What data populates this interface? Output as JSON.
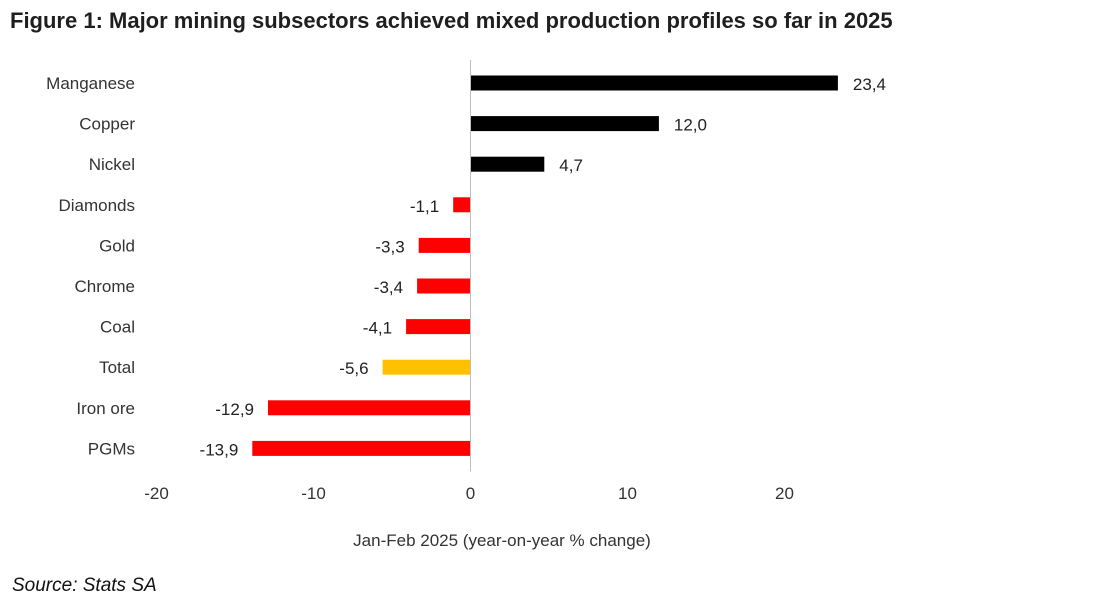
{
  "title": "Figure 1: Major mining subsectors achieved mixed production profiles so far in 2025",
  "source": "Source: Stats SA",
  "chart_data": {
    "type": "bar",
    "orientation": "horizontal",
    "categories": [
      "Manganese",
      "Copper",
      "Nickel",
      "Diamonds",
      "Gold",
      "Chrome",
      "Coal",
      "Total",
      "Iron ore",
      "PGMs"
    ],
    "values": [
      23.4,
      12.0,
      4.7,
      -1.1,
      -3.3,
      -3.4,
      -4.1,
      -5.6,
      -12.9,
      -13.9
    ],
    "data_labels": [
      "23,4",
      "12,0",
      "4,7",
      "-1,1",
      "-3,3",
      "-3,4",
      "-4,1",
      "-5,6",
      "-12,9",
      "-13,9"
    ],
    "bar_colors": [
      "#000000",
      "#000000",
      "#000000",
      "#ff0000",
      "#ff0000",
      "#ff0000",
      "#ff0000",
      "#ffc000",
      "#ff0000",
      "#ff0000"
    ],
    "xlabel": "Jan-Feb 2025 (year-on-year % change)",
    "ylabel": "",
    "xlim": [
      -20,
      25
    ],
    "xticks": [
      -20,
      -10,
      0,
      10,
      20
    ],
    "xtick_labels": [
      "-20",
      "-10",
      "0",
      "10",
      "20"
    ],
    "grid": false,
    "legend": "none"
  }
}
